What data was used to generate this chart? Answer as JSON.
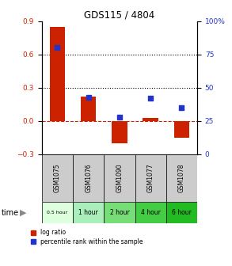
{
  "title": "GDS115 / 4804",
  "samples": [
    "GSM1075",
    "GSM1076",
    "GSM1090",
    "GSM1077",
    "GSM1078"
  ],
  "time_labels": [
    "0.5 hour",
    "1 hour",
    "2 hour",
    "4 hour",
    "6 hour"
  ],
  "log_ratio": [
    0.85,
    0.22,
    -0.2,
    0.03,
    -0.15
  ],
  "percentile": [
    80,
    43,
    28,
    42,
    35
  ],
  "bar_color": "#cc2200",
  "dot_color": "#2233cc",
  "ylim_left": [
    -0.3,
    0.9
  ],
  "ylim_right": [
    0,
    100
  ],
  "yticks_left": [
    -0.3,
    0.0,
    0.3,
    0.6,
    0.9
  ],
  "yticks_right": [
    0,
    25,
    50,
    75,
    100
  ],
  "zero_line_color": "#cc2200",
  "dotted_line_color": "#000000",
  "sample_bg_color": "#cccccc",
  "time_bg_colors": [
    "#ddffdd",
    "#aaeebb",
    "#77dd77",
    "#44cc44",
    "#22bb22"
  ],
  "legend_log_ratio": "log ratio",
  "legend_percentile": "percentile rank within the sample"
}
